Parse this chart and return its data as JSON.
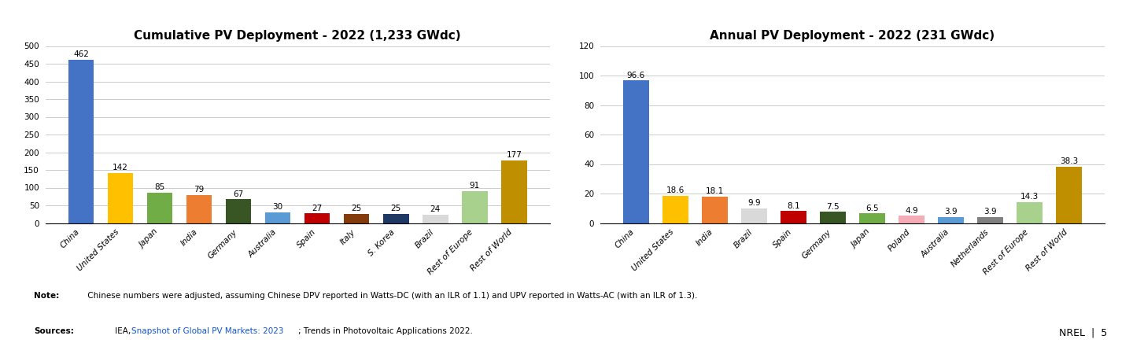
{
  "chart1": {
    "title": "Cumulative PV Deployment - 2022 (1,233 GWdc)",
    "categories": [
      "China",
      "United States",
      "Japan",
      "India",
      "Germany",
      "Australia",
      "Spain",
      "Italy",
      "S. Korea",
      "Brazil",
      "Rest of Europe",
      "Rest of World"
    ],
    "values": [
      462,
      142,
      85,
      79,
      67,
      30,
      27,
      25,
      25,
      24,
      91,
      177
    ],
    "colors": [
      "#4472C4",
      "#FFC000",
      "#70AD47",
      "#ED7D31",
      "#375623",
      "#5B9BD5",
      "#C00000",
      "#843C0C",
      "#1F3864",
      "#D9D9D9",
      "#A9D18E",
      "#BF8F00"
    ],
    "ylim": [
      0,
      500
    ],
    "yticks": [
      0,
      50,
      100,
      150,
      200,
      250,
      300,
      350,
      400,
      450,
      500
    ]
  },
  "chart2": {
    "title": "Annual PV Deployment - 2022 (231 GWdc)",
    "categories": [
      "China",
      "United States",
      "India",
      "Brazil",
      "Spain",
      "Germany",
      "Japan",
      "Poland",
      "Australia",
      "Netherlands",
      "Rest of Europe",
      "Rest of World"
    ],
    "values": [
      96.6,
      18.6,
      18.1,
      9.9,
      8.1,
      7.5,
      6.5,
      4.9,
      3.9,
      3.9,
      14.3,
      38.3
    ],
    "colors": [
      "#4472C4",
      "#FFC000",
      "#ED7D31",
      "#D9D9D9",
      "#C00000",
      "#375623",
      "#70AD47",
      "#F4ACB7",
      "#5B9BD5",
      "#808080",
      "#A9D18E",
      "#BF8F00"
    ],
    "ylim": [
      0,
      120
    ],
    "yticks": [
      0,
      20,
      40,
      60,
      80,
      100,
      120
    ]
  },
  "note_bold": "Note:",
  "note_text": " Chinese numbers were adjusted, assuming Chinese DPV reported in Watts-DC (with an ILR of 1.1) and UPV reported in Watts-AC (with an ILR of 1.3).",
  "sources_bold": "Sources:",
  "sources_plain": " IEA, ",
  "sources_link": "Snapshot of Global PV Markets: 2023",
  "sources_end": "; Trends in Photovoltaic Applications 2022.",
  "nrel_text": "NREL  |  5",
  "background_color": "#FFFFFF",
  "title_fontsize": 11,
  "tick_fontsize": 7.5,
  "value_fontsize": 7.5,
  "note_fontsize": 7.5
}
